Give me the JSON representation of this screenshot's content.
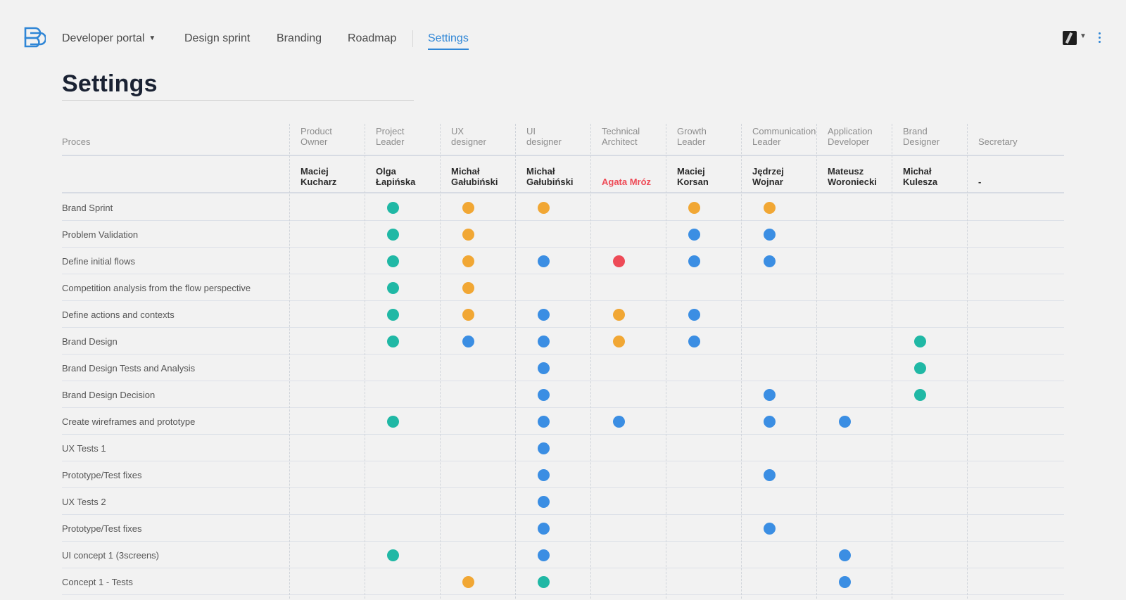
{
  "nav": {
    "items": [
      {
        "label": "Developer portal",
        "has_dropdown": true,
        "active": false
      },
      {
        "label": "Design sprint",
        "active": false
      },
      {
        "label": "Branding",
        "active": false
      },
      {
        "label": "Roadmap",
        "active": false
      },
      {
        "label": "Settings",
        "active": true
      }
    ],
    "logo_icon": "brand-logo-icon",
    "avatar_icon": "user-avatar",
    "menu_icon": "kebab-menu-icon"
  },
  "page": {
    "title": "Settings"
  },
  "colors": {
    "accent": "#2f86d6",
    "green": "#20b8a5",
    "orange": "#f1a734",
    "blue": "#3b8ee3",
    "red": "#ee4b57"
  },
  "table": {
    "process_header": "Proces",
    "columns": [
      {
        "role": [
          "Product",
          "Owner"
        ],
        "person": [
          "Maciej",
          "Kucharz"
        ],
        "highlight": false
      },
      {
        "role": [
          "Project",
          "Leader"
        ],
        "person": [
          "Olga",
          "Łapińska"
        ],
        "highlight": false
      },
      {
        "role": [
          "UX",
          "designer"
        ],
        "person": [
          "Michał",
          "Gałubiński"
        ],
        "highlight": false
      },
      {
        "role": [
          "UI",
          "designer"
        ],
        "person": [
          "Michał",
          "Gałubiński"
        ],
        "highlight": false
      },
      {
        "role": [
          "Technical",
          "Architect"
        ],
        "person": [
          "Agata Mróz"
        ],
        "highlight": true
      },
      {
        "role": [
          "Growth",
          "Leader"
        ],
        "person": [
          "Maciej",
          "Korsan"
        ],
        "highlight": false
      },
      {
        "role": [
          "Communication",
          "Leader"
        ],
        "person": [
          "Jędrzej",
          "Wojnar"
        ],
        "highlight": false
      },
      {
        "role": [
          "Application",
          "Developer"
        ],
        "person": [
          "Mateusz",
          "Woroniecki"
        ],
        "highlight": false
      },
      {
        "role": [
          "Brand",
          "Designer"
        ],
        "person": [
          "Michał",
          "Kulesza"
        ],
        "highlight": false
      },
      {
        "role": [
          "Secretary"
        ],
        "person": [
          "-"
        ],
        "highlight": false
      }
    ],
    "rows": [
      {
        "label": "Brand Sprint",
        "cells": [
          "",
          "green",
          "orange",
          "orange",
          "",
          "orange",
          "orange",
          "",
          "",
          ""
        ]
      },
      {
        "label": "Problem Validation",
        "cells": [
          "",
          "green",
          "orange",
          "",
          "",
          "blue",
          "blue",
          "",
          "",
          ""
        ]
      },
      {
        "label": "Define initial flows",
        "cells": [
          "",
          "green",
          "orange",
          "blue",
          "red",
          "blue",
          "blue",
          "",
          "",
          ""
        ]
      },
      {
        "label": "Competition analysis from the flow perspective",
        "cells": [
          "",
          "green",
          "orange",
          "",
          "",
          "",
          "",
          "",
          "",
          ""
        ]
      },
      {
        "label": "Define actions and contexts",
        "cells": [
          "",
          "green",
          "orange",
          "blue",
          "orange",
          "blue",
          "",
          "",
          "",
          ""
        ]
      },
      {
        "label": "Brand Design",
        "cells": [
          "",
          "green",
          "blue",
          "blue",
          "orange",
          "blue",
          "",
          "",
          "green",
          ""
        ]
      },
      {
        "label": "Brand Design Tests and Analysis",
        "cells": [
          "",
          "",
          "",
          "blue",
          "",
          "",
          "",
          "",
          "green",
          ""
        ]
      },
      {
        "label": "Brand Design Decision",
        "cells": [
          "",
          "",
          "",
          "blue",
          "",
          "",
          "blue",
          "",
          "green",
          ""
        ]
      },
      {
        "label": "Create wireframes and prototype",
        "cells": [
          "",
          "green",
          "",
          "blue",
          "blue",
          "",
          "blue",
          "blue",
          "",
          ""
        ]
      },
      {
        "label": "UX Tests 1",
        "cells": [
          "",
          "",
          "",
          "blue",
          "",
          "",
          "",
          "",
          "",
          ""
        ]
      },
      {
        "label": "Prototype/Test fixes",
        "cells": [
          "",
          "",
          "",
          "blue",
          "",
          "",
          "blue",
          "",
          "",
          ""
        ]
      },
      {
        "label": "UX Tests 2",
        "cells": [
          "",
          "",
          "",
          "blue",
          "",
          "",
          "",
          "",
          "",
          ""
        ]
      },
      {
        "label": "Prototype/Test fixes",
        "cells": [
          "",
          "",
          "",
          "blue",
          "",
          "",
          "blue",
          "",
          "",
          ""
        ]
      },
      {
        "label": "UI concept 1  (3screens)",
        "cells": [
          "",
          "green",
          "",
          "blue",
          "",
          "",
          "",
          "blue",
          "",
          ""
        ]
      },
      {
        "label": "Concept 1 - Tests",
        "cells": [
          "",
          "",
          "orange",
          "green",
          "",
          "",
          "",
          "blue",
          "",
          ""
        ]
      },
      {
        "label": "",
        "cells": [
          "",
          "green",
          "",
          "",
          "",
          "",
          "",
          "green",
          "",
          ""
        ]
      }
    ]
  }
}
